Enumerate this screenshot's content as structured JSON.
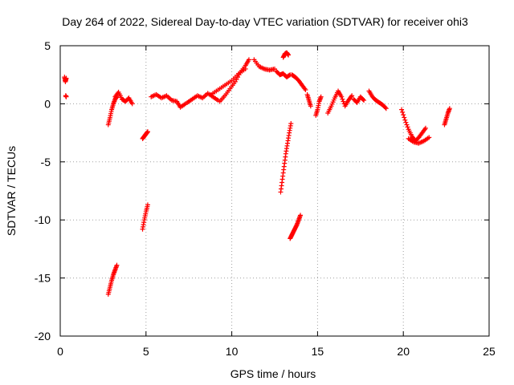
{
  "chart_data": {
    "type": "scatter",
    "title": "Day 264 of 2022, Sidereal Day-to-day VTEC variation (SDTVAR) for receiver ohi3",
    "xlabel": "GPS time / hours",
    "ylabel": "SDTVAR / TECUs",
    "xlim": [
      0,
      25
    ],
    "ylim": [
      -20,
      5
    ],
    "xticks": [
      0,
      5,
      10,
      15,
      20,
      25
    ],
    "yticks": [
      -20,
      -15,
      -10,
      -5,
      0,
      5
    ],
    "grid": true,
    "marker": "+",
    "color": "#ff0000",
    "segments": [
      {
        "x": [
          0.25,
          0.3,
          0.35
        ],
        "y": [
          2.3,
          1.9,
          2.2
        ]
      },
      {
        "x": [
          0.32,
          0.35
        ],
        "y": [
          0.7,
          0.6
        ]
      },
      {
        "x": [
          2.8,
          2.9,
          3.0,
          3.1,
          3.2,
          3.3
        ],
        "y": [
          -1.8,
          -1.2,
          -0.5,
          0.0,
          0.4,
          0.6
        ]
      },
      {
        "x": [
          3.2,
          3.4,
          3.6,
          3.8,
          4.0,
          4.2
        ],
        "y": [
          0.6,
          1.0,
          0.4,
          0.2,
          0.5,
          0.0
        ]
      },
      {
        "x": [
          2.8,
          2.9,
          3.0,
          3.1,
          3.2,
          3.3
        ],
        "y": [
          -16.4,
          -15.8,
          -15.2,
          -14.7,
          -14.3,
          -13.9
        ]
      },
      {
        "x": [
          4.8,
          4.9,
          5.0,
          5.1
        ],
        "y": [
          -3.0,
          -2.8,
          -2.6,
          -2.4
        ]
      },
      {
        "x": [
          4.8,
          4.9,
          5.0,
          5.1
        ],
        "y": [
          -10.8,
          -10.0,
          -9.3,
          -8.7
        ]
      },
      {
        "x": [
          5.3,
          5.6,
          5.9,
          6.2,
          6.5,
          6.8,
          7.0,
          7.3
        ],
        "y": [
          0.6,
          0.8,
          0.5,
          0.7,
          0.3,
          0.2,
          -0.3,
          0.0
        ]
      },
      {
        "x": [
          7.4,
          7.7,
          8.0,
          8.3,
          8.6,
          8.9,
          9.2
        ],
        "y": [
          0.1,
          0.4,
          0.7,
          0.5,
          0.9,
          0.6,
          0.3
        ]
      },
      {
        "x": [
          9.3,
          9.6,
          9.9,
          10.2,
          10.5,
          10.8,
          11.0
        ],
        "y": [
          0.2,
          0.7,
          1.3,
          1.9,
          2.7,
          3.3,
          3.8
        ]
      },
      {
        "x": [
          8.8,
          9.2,
          9.6,
          10.0,
          10.4,
          10.8
        ],
        "y": [
          0.8,
          1.2,
          1.6,
          2.0,
          2.6,
          3.0
        ]
      },
      {
        "x": [
          11.3,
          11.6,
          11.9,
          12.2,
          12.5
        ],
        "y": [
          3.8,
          3.2,
          3.0,
          2.9,
          3.0
        ]
      },
      {
        "x": [
          12.6,
          12.8,
          13.0,
          13.2,
          13.4
        ],
        "y": [
          2.8,
          2.5,
          2.6,
          2.3,
          2.5
        ]
      },
      {
        "x": [
          13.0,
          13.1,
          13.2,
          13.3
        ],
        "y": [
          4.0,
          4.3,
          4.4,
          4.2
        ]
      },
      {
        "x": [
          13.5,
          13.7,
          13.9,
          14.1,
          14.3
        ],
        "y": [
          2.5,
          2.3,
          2.0,
          1.6,
          1.2
        ]
      },
      {
        "x": [
          14.4,
          14.5,
          14.6
        ],
        "y": [
          0.8,
          0.3,
          -0.2
        ]
      },
      {
        "x": [
          12.85,
          12.95,
          13.05,
          13.15,
          13.25,
          13.35,
          13.45
        ],
        "y": [
          -7.6,
          -6.5,
          -5.4,
          -4.3,
          -3.4,
          -2.5,
          -1.7
        ]
      },
      {
        "x": [
          13.4,
          13.5,
          13.6,
          13.7,
          13.8,
          13.9,
          14.0
        ],
        "y": [
          -11.6,
          -11.3,
          -11.0,
          -10.7,
          -10.4,
          -10.0,
          -9.6
        ]
      },
      {
        "x": [
          14.9,
          15.0,
          15.1,
          15.2
        ],
        "y": [
          -1.0,
          -0.5,
          0.2,
          0.6
        ]
      },
      {
        "x": [
          15.6,
          15.8,
          16.0,
          16.2,
          16.4,
          16.6,
          16.8,
          17.0
        ],
        "y": [
          -0.8,
          -0.2,
          0.5,
          1.1,
          0.6,
          -0.2,
          0.3,
          0.7
        ]
      },
      {
        "x": [
          17.1,
          17.3,
          17.5,
          17.7
        ],
        "y": [
          0.4,
          0.1,
          0.6,
          0.3
        ]
      },
      {
        "x": [
          18.0,
          18.2,
          18.4,
          18.6,
          18.8,
          19.0
        ],
        "y": [
          1.1,
          0.6,
          0.3,
          0.1,
          -0.1,
          -0.4
        ]
      },
      {
        "x": [
          19.9,
          20.1,
          20.3,
          20.5,
          20.7,
          20.9,
          21.1,
          21.3
        ],
        "y": [
          -0.5,
          -1.4,
          -2.2,
          -2.8,
          -3.2,
          -2.9,
          -2.5,
          -2.1
        ]
      },
      {
        "x": [
          20.3,
          20.6,
          20.9,
          21.2,
          21.5
        ],
        "y": [
          -3.0,
          -3.3,
          -3.4,
          -3.2,
          -2.9
        ]
      },
      {
        "x": [
          22.4,
          22.5,
          22.6,
          22.7
        ],
        "y": [
          -1.8,
          -1.3,
          -0.8,
          -0.4
        ]
      }
    ]
  }
}
